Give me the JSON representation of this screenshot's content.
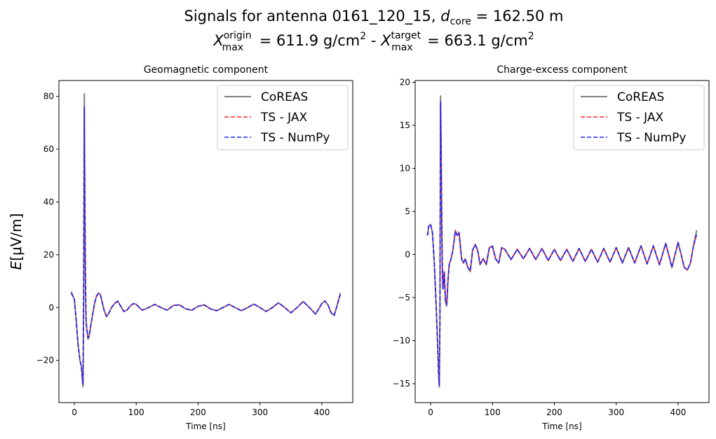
{
  "figure": {
    "title_line1_prefix": "Signals for antenna 0161_120_15, ",
    "title_line1_symbol": "d",
    "title_line1_sub": "core",
    "title_line1_value": " = 162.50 m",
    "title_line2_sym1": "X",
    "title_line2_sup1": "origin",
    "title_line2_sub1": "max",
    "title_line2_val1": " =  611.9 g/cm",
    "title_line2_exp1": "2",
    "title_line2_sep": " -  ",
    "title_line2_sym2": "X",
    "title_line2_sup2": "target",
    "title_line2_sub2": "max",
    "title_line2_val2": " =  663.1 g/cm",
    "title_line2_exp2": "2",
    "shared_ylabel_symbol": "E",
    "shared_ylabel_rest": "[μV/m]"
  },
  "legend_entries": [
    "CoREAS",
    "TS - JAX",
    "TS - NumPy"
  ],
  "colors": {
    "coreas": "#808080",
    "jax": "#ff2020",
    "numpy": "#2020ff"
  },
  "chart_data": [
    {
      "type": "line",
      "title": "Geomagnetic component",
      "xlabel": "Time [ns]",
      "ylabel": "E[μV/m]",
      "xlim": [
        -25,
        450
      ],
      "ylim": [
        -36,
        86
      ],
      "xticks": [
        0,
        100,
        200,
        300,
        400
      ],
      "yticks": [
        -20,
        0,
        20,
        40,
        60,
        80
      ],
      "legend": "top-right",
      "grid": false,
      "series": [
        {
          "name": "CoREAS",
          "x": [
            -5,
            0,
            3,
            6,
            9,
            11,
            12,
            13,
            14,
            15,
            16,
            17,
            18,
            19,
            20,
            22,
            24,
            27,
            30,
            33,
            36,
            39,
            42,
            45,
            48,
            52,
            56,
            60,
            65,
            70,
            75,
            80,
            85,
            90,
            95,
            100,
            105,
            110,
            120,
            130,
            140,
            150,
            160,
            170,
            180,
            190,
            200,
            210,
            220,
            230,
            240,
            250,
            260,
            270,
            280,
            290,
            300,
            310,
            320,
            330,
            340,
            350,
            360,
            370,
            380,
            390,
            400,
            405,
            410,
            415,
            420,
            425,
            430
          ],
          "y": [
            6,
            3,
            -5,
            -14,
            -20,
            -22,
            -24,
            -28,
            -30,
            5,
            81,
            42,
            8,
            -5,
            -8,
            -12,
            -11,
            -6,
            -2,
            2,
            4.5,
            5.5,
            5,
            2,
            -1,
            -3.5,
            -2,
            0,
            1.5,
            2.5,
            0.5,
            -1.5,
            -1,
            0.5,
            1.5,
            1.2,
            0,
            -1,
            0,
            1.2,
            0,
            -1,
            0.8,
            1,
            -0.5,
            -1,
            0.5,
            1,
            -0.5,
            -1.2,
            0,
            1.2,
            0,
            -1.2,
            0,
            1.3,
            0,
            -1.5,
            0,
            1.8,
            0,
            -2,
            0,
            2.3,
            0,
            -2.5,
            1.5,
            2.5,
            1,
            -2,
            -3,
            1,
            5.5
          ]
        },
        {
          "name": "TS - JAX",
          "x": [
            -5,
            0,
            3,
            6,
            9,
            11,
            12,
            13,
            14,
            15,
            16,
            17,
            18,
            19,
            20,
            22,
            24,
            27,
            30,
            33,
            36,
            39,
            42,
            45,
            48,
            52,
            56,
            60,
            65,
            70,
            75,
            80,
            85,
            90,
            95,
            100,
            105,
            110,
            120,
            130,
            140,
            150,
            160,
            170,
            180,
            190,
            200,
            210,
            220,
            230,
            240,
            250,
            260,
            270,
            280,
            290,
            300,
            310,
            320,
            330,
            340,
            350,
            360,
            370,
            380,
            390,
            400,
            405,
            410,
            415,
            420,
            425,
            430
          ],
          "y": [
            5.5,
            3,
            -5,
            -14,
            -20,
            -22,
            -24,
            -27,
            -29,
            4,
            75,
            40,
            7,
            -5,
            -8,
            -11.5,
            -10.5,
            -6,
            -2,
            2,
            4.5,
            5.3,
            4.8,
            2,
            -1,
            -3.3,
            -2,
            0,
            1.5,
            2.4,
            0.5,
            -1.5,
            -1,
            0.5,
            1.5,
            1.2,
            0,
            -1,
            0,
            1.2,
            0,
            -1,
            0.8,
            1,
            -0.5,
            -1,
            0.5,
            1,
            -0.5,
            -1.2,
            0,
            1.2,
            0,
            -1.2,
            0,
            1.3,
            0,
            -1.5,
            0,
            1.8,
            0,
            -2,
            0,
            2.3,
            0,
            -2.5,
            1.5,
            2.5,
            1,
            -2,
            -3,
            1,
            5
          ]
        },
        {
          "name": "TS - NumPy",
          "x": [
            -5,
            0,
            3,
            6,
            9,
            11,
            12,
            13,
            14,
            15,
            16,
            17,
            18,
            19,
            20,
            22,
            24,
            27,
            30,
            33,
            36,
            39,
            42,
            45,
            48,
            52,
            56,
            60,
            65,
            70,
            75,
            80,
            85,
            90,
            95,
            100,
            105,
            110,
            120,
            130,
            140,
            150,
            160,
            170,
            180,
            190,
            200,
            210,
            220,
            230,
            240,
            250,
            260,
            270,
            280,
            290,
            300,
            310,
            320,
            330,
            340,
            350,
            360,
            370,
            380,
            390,
            400,
            405,
            410,
            415,
            420,
            425,
            430
          ],
          "y": [
            5.5,
            3,
            -5,
            -14,
            -20,
            -22,
            -24,
            -27,
            -29,
            4,
            76,
            40,
            7,
            -5,
            -8,
            -11.5,
            -10.5,
            -6,
            -2,
            2,
            4.5,
            5.3,
            4.8,
            2,
            -1,
            -3.3,
            -2,
            0,
            1.5,
            2.4,
            0.5,
            -1.5,
            -1,
            0.5,
            1.5,
            1.2,
            0,
            -1,
            0,
            1.2,
            0,
            -1,
            0.8,
            1,
            -0.5,
            -1,
            0.5,
            1,
            -0.5,
            -1.2,
            0,
            1.2,
            0,
            -1.2,
            0,
            1.3,
            0,
            -1.5,
            0,
            1.8,
            0,
            -2,
            0,
            2.3,
            0,
            -2.5,
            1.5,
            2.5,
            1,
            -2,
            -3,
            1,
            5
          ]
        }
      ]
    },
    {
      "type": "line",
      "title": "Charge-excess component",
      "xlabel": "Time [ns]",
      "ylabel": "",
      "xlim": [
        -25,
        450
      ],
      "ylim": [
        -17.2,
        20.2
      ],
      "xticks": [
        0,
        100,
        200,
        300,
        400
      ],
      "yticks": [
        -15,
        -10,
        -5,
        0,
        5,
        10,
        15,
        20
      ],
      "legend": "top-right",
      "grid": false,
      "series": [
        {
          "name": "CoREAS",
          "x": [
            -5,
            -3,
            0,
            3,
            6,
            9,
            11,
            13,
            14,
            15,
            16,
            17,
            18,
            19,
            20,
            22,
            24,
            26,
            28,
            30,
            33,
            36,
            40,
            43,
            46,
            50,
            53,
            56,
            60,
            64,
            68,
            72,
            76,
            80,
            85,
            90,
            95,
            100,
            105,
            110,
            115,
            120,
            130,
            140,
            150,
            160,
            170,
            180,
            190,
            200,
            210,
            220,
            230,
            240,
            250,
            260,
            270,
            280,
            290,
            300,
            310,
            320,
            330,
            340,
            350,
            360,
            370,
            380,
            390,
            400,
            405,
            410,
            415,
            420,
            425,
            430
          ],
          "y": [
            2.2,
            3.3,
            3.5,
            2.5,
            -1,
            -6,
            -10,
            -14,
            -15.4,
            -8,
            18.4,
            13,
            4,
            -2,
            -4,
            -2,
            -5.5,
            -6,
            -3,
            -1.2,
            -0.5,
            0.5,
            2.8,
            2.2,
            2.6,
            -0.5,
            -1,
            -0.5,
            -1.5,
            -2,
            0.5,
            1.2,
            0.5,
            -1.2,
            -0.5,
            -1.2,
            0.8,
            1,
            -0.5,
            -1,
            0.8,
            0.6,
            -0.6,
            0.6,
            -0.5,
            0.7,
            -0.6,
            0.7,
            -0.7,
            0.6,
            -0.7,
            0.6,
            -0.8,
            0.7,
            -0.8,
            0.6,
            -0.9,
            0.7,
            -0.9,
            0.8,
            -1,
            0.8,
            -1,
            1,
            -1.1,
            1,
            -1.2,
            1.3,
            -1.5,
            1.4,
            0,
            -1.5,
            -1.8,
            -1,
            1,
            2.8
          ]
        },
        {
          "name": "TS - JAX",
          "x": [
            -5,
            -3,
            0,
            3,
            6,
            9,
            11,
            13,
            14,
            15,
            16,
            17,
            18,
            19,
            20,
            22,
            24,
            26,
            28,
            30,
            33,
            36,
            40,
            43,
            46,
            50,
            53,
            56,
            60,
            64,
            68,
            72,
            76,
            80,
            85,
            90,
            95,
            100,
            105,
            110,
            115,
            120,
            130,
            140,
            150,
            160,
            170,
            180,
            190,
            200,
            210,
            220,
            230,
            240,
            250,
            260,
            270,
            280,
            290,
            300,
            310,
            320,
            330,
            340,
            350,
            360,
            370,
            380,
            390,
            400,
            405,
            410,
            415,
            420,
            425,
            430
          ],
          "y": [
            2.2,
            3.3,
            3.5,
            2.5,
            -1,
            -6,
            -10,
            -14,
            -15.2,
            -8,
            17.8,
            12.8,
            4,
            -2,
            -4,
            -2,
            -5.3,
            -5.8,
            -3,
            -1.2,
            -0.5,
            0.5,
            2.7,
            2.2,
            2.5,
            -0.5,
            -1,
            -0.5,
            -1.5,
            -1.9,
            0.5,
            1.1,
            0.5,
            -1.1,
            -0.5,
            -1.1,
            0.8,
            0.9,
            -0.5,
            -1,
            0.8,
            0.6,
            -0.6,
            0.6,
            -0.5,
            0.7,
            -0.6,
            0.7,
            -0.7,
            0.6,
            -0.7,
            0.6,
            -0.8,
            0.7,
            -0.8,
            0.6,
            -0.9,
            0.7,
            -0.9,
            0.8,
            -1,
            0.8,
            -1,
            1,
            -1.1,
            1,
            -1.2,
            1.3,
            -1.5,
            1.4,
            0,
            -1.5,
            -1.8,
            -1,
            1,
            2.3
          ]
        },
        {
          "name": "TS - NumPy",
          "x": [
            -5,
            -3,
            0,
            3,
            6,
            9,
            11,
            13,
            14,
            15,
            16,
            17,
            18,
            19,
            20,
            22,
            24,
            26,
            28,
            30,
            33,
            36,
            40,
            43,
            46,
            50,
            53,
            56,
            60,
            64,
            68,
            72,
            76,
            80,
            85,
            90,
            95,
            100,
            105,
            110,
            115,
            120,
            130,
            140,
            150,
            160,
            170,
            180,
            190,
            200,
            210,
            220,
            230,
            240,
            250,
            260,
            270,
            280,
            290,
            300,
            310,
            320,
            330,
            340,
            350,
            360,
            370,
            380,
            390,
            400,
            405,
            410,
            415,
            420,
            425,
            430
          ],
          "y": [
            2.2,
            3.3,
            3.5,
            2.5,
            -1,
            -6,
            -10,
            -14,
            -15.2,
            -8,
            17.7,
            12.7,
            4,
            -2,
            -4,
            -2,
            -5.3,
            -5.8,
            -3,
            -1.2,
            -0.5,
            0.5,
            2.7,
            2.2,
            2.5,
            -0.5,
            -1,
            -0.5,
            -1.5,
            -1.9,
            0.5,
            1.1,
            0.5,
            -1.1,
            -0.5,
            -1.1,
            0.8,
            0.9,
            -0.5,
            -1,
            0.8,
            0.6,
            -0.6,
            0.6,
            -0.5,
            0.7,
            -0.6,
            0.7,
            -0.7,
            0.6,
            -0.7,
            0.6,
            -0.8,
            0.7,
            -0.8,
            0.6,
            -0.9,
            0.7,
            -0.9,
            0.8,
            -1,
            0.8,
            -1,
            1,
            -1.1,
            1,
            -1.2,
            1.3,
            -1.5,
            1.4,
            0,
            -1.5,
            -1.8,
            -1,
            1,
            2.3
          ]
        }
      ]
    }
  ]
}
